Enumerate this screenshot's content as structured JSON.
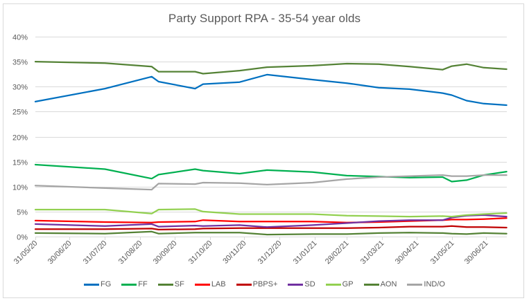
{
  "chart_data": {
    "type": "line",
    "title": "Party Support RPA - 35-54 year olds",
    "xlabel": "",
    "ylabel": "",
    "ylim": [
      0,
      40
    ],
    "y_ticks": [
      "0%",
      "5%",
      "10%",
      "15%",
      "20%",
      "25%",
      "30%",
      "35%",
      "40%"
    ],
    "y_tick_values": [
      0,
      5,
      10,
      15,
      20,
      25,
      30,
      35,
      40
    ],
    "x_tick_labels": [
      "31/05/20",
      "30/06/20",
      "31/07/20",
      "31/08/20",
      "30/09/20",
      "31/10/20",
      "30/11/20",
      "31/12/20",
      "31/01/21",
      "28/02/21",
      "31/03/21",
      "30/04/21",
      "31/05/21",
      "30/06/21"
    ],
    "x_tick_dates": [
      "2020-05-31",
      "2020-06-30",
      "2020-07-31",
      "2020-08-31",
      "2020-09-30",
      "2020-10-31",
      "2020-11-30",
      "2020-12-31",
      "2021-01-31",
      "2021-02-28",
      "2021-03-31",
      "2021-04-30",
      "2021-05-31",
      "2021-06-30"
    ],
    "xlim": [
      "2020-05-31",
      "2021-07-18"
    ],
    "grid": true,
    "legend_position": "bottom",
    "x": [
      "2020-05-31",
      "2020-07-31",
      "2020-09-10",
      "2020-09-16",
      "2020-10-18",
      "2020-10-25",
      "2020-11-26",
      "2020-12-20",
      "2021-01-29",
      "2021-02-28",
      "2021-03-28",
      "2021-04-24",
      "2021-05-23",
      "2021-05-31",
      "2021-06-13",
      "2021-06-28",
      "2021-07-18"
    ],
    "series": [
      {
        "name": "FG",
        "color": "#0070C0",
        "values": [
          27.0,
          29.6,
          32.0,
          31.0,
          29.6,
          30.5,
          30.9,
          32.4,
          31.4,
          30.7,
          29.8,
          29.5,
          28.7,
          28.3,
          27.2,
          26.6,
          26.3
        ]
      },
      {
        "name": "FF",
        "color": "#00B050",
        "values": [
          14.4,
          13.5,
          11.6,
          12.4,
          13.5,
          13.2,
          12.6,
          13.3,
          12.9,
          12.2,
          12.0,
          11.8,
          11.9,
          11.0,
          11.3,
          12.3,
          13.0
        ]
      },
      {
        "name": "SF",
        "color": "#548235",
        "values": [
          35.0,
          34.7,
          34.0,
          33.0,
          33.0,
          32.6,
          33.2,
          33.9,
          34.2,
          34.6,
          34.5,
          34.0,
          33.4,
          34.1,
          34.5,
          33.8,
          33.5
        ]
      },
      {
        "name": "LAB",
        "color": "#FF0000",
        "values": [
          3.2,
          2.9,
          2.8,
          2.9,
          3.0,
          3.3,
          3.0,
          3.0,
          3.0,
          2.8,
          2.9,
          3.1,
          3.3,
          3.4,
          3.4,
          3.5,
          3.7
        ]
      },
      {
        "name": "PBPS+",
        "color": "#C00000",
        "values": [
          1.5,
          1.5,
          1.6,
          1.4,
          1.5,
          1.6,
          1.7,
          1.7,
          1.7,
          1.7,
          1.8,
          2.0,
          2.0,
          2.1,
          1.9,
          1.9,
          1.8
        ]
      },
      {
        "name": "SD",
        "color": "#7030A0",
        "values": [
          2.5,
          2.1,
          2.5,
          2.0,
          2.2,
          2.1,
          2.3,
          1.9,
          2.3,
          2.7,
          3.1,
          3.3,
          3.3,
          3.8,
          4.2,
          4.3,
          4.0
        ]
      },
      {
        "name": "GP",
        "color": "#92D050",
        "values": [
          5.4,
          5.4,
          4.6,
          5.4,
          5.5,
          5.0,
          4.5,
          4.5,
          4.5,
          4.2,
          4.1,
          4.0,
          4.1,
          4.0,
          4.3,
          4.5,
          4.7
        ]
      },
      {
        "name": "AON",
        "color": "#548235",
        "values": [
          0.7,
          0.6,
          1.0,
          0.6,
          0.8,
          0.8,
          0.8,
          0.4,
          0.5,
          0.5,
          0.7,
          0.8,
          0.7,
          0.6,
          0.5,
          0.7,
          0.6
        ]
      },
      {
        "name": "IND/O",
        "color": "#A5A5A5",
        "values": [
          10.2,
          9.7,
          9.4,
          10.6,
          10.5,
          10.8,
          10.7,
          10.4,
          10.8,
          11.5,
          11.9,
          12.1,
          12.3,
          12.1,
          12.1,
          12.3,
          12.3
        ]
      }
    ]
  },
  "colors": {
    "grid": "#d9d9d9",
    "text": "#595959",
    "border": "#d9d9d9"
  }
}
